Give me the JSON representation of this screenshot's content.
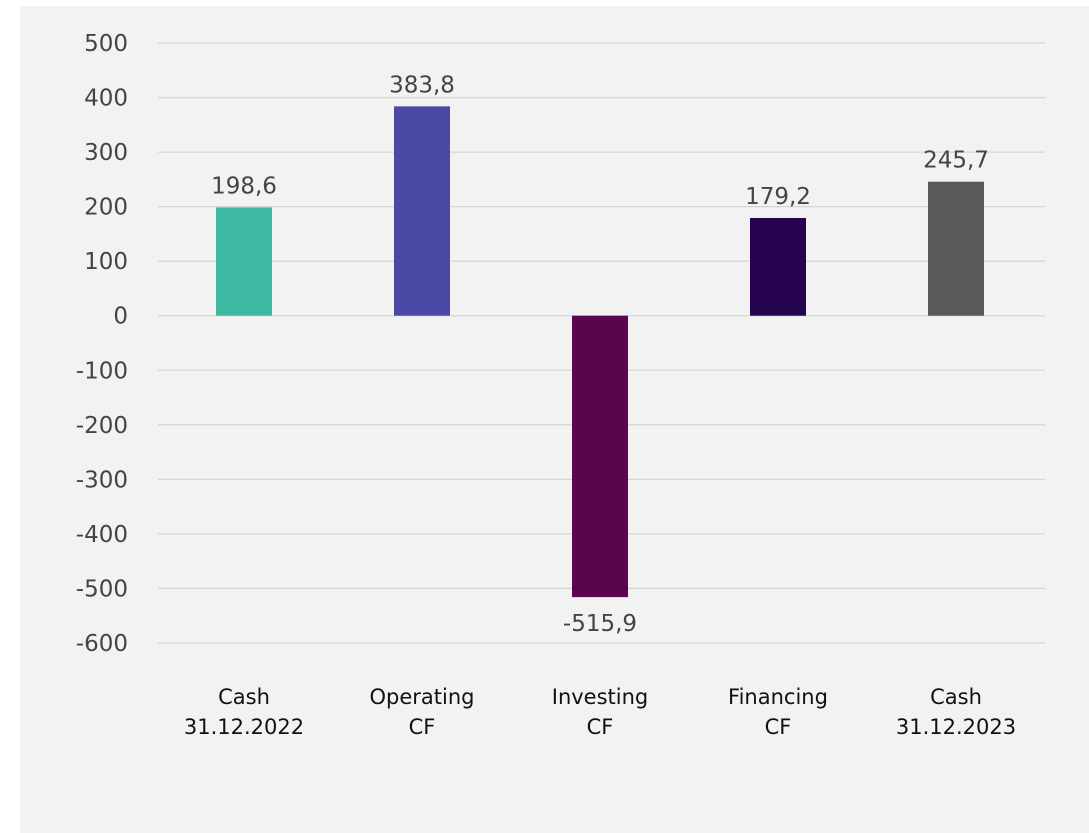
{
  "chart_data": {
    "type": "bar",
    "title": "",
    "xlabel": "",
    "ylabel": "",
    "categories": [
      [
        "Cash",
        "31.12.2022"
      ],
      [
        "Operating",
        "CF"
      ],
      [
        "Investing",
        "CF"
      ],
      [
        "Financing",
        "CF"
      ],
      [
        "Cash",
        "31.12.2023"
      ]
    ],
    "values": [
      198.6,
      383.8,
      -515.9,
      179.2,
      245.7
    ],
    "value_labels": [
      "198,6",
      "383,8",
      "-515,9",
      "179,2",
      "245,7"
    ],
    "colors": [
      "#3db8a1",
      "#4b49a6",
      "#5a064f",
      "#260450",
      "#595959"
    ],
    "ylim": [
      -600,
      500
    ],
    "yticks": [
      500,
      400,
      300,
      200,
      100,
      0,
      -100,
      -200,
      -300,
      -400,
      -500,
      -600
    ],
    "grid": true,
    "legend": "none"
  }
}
